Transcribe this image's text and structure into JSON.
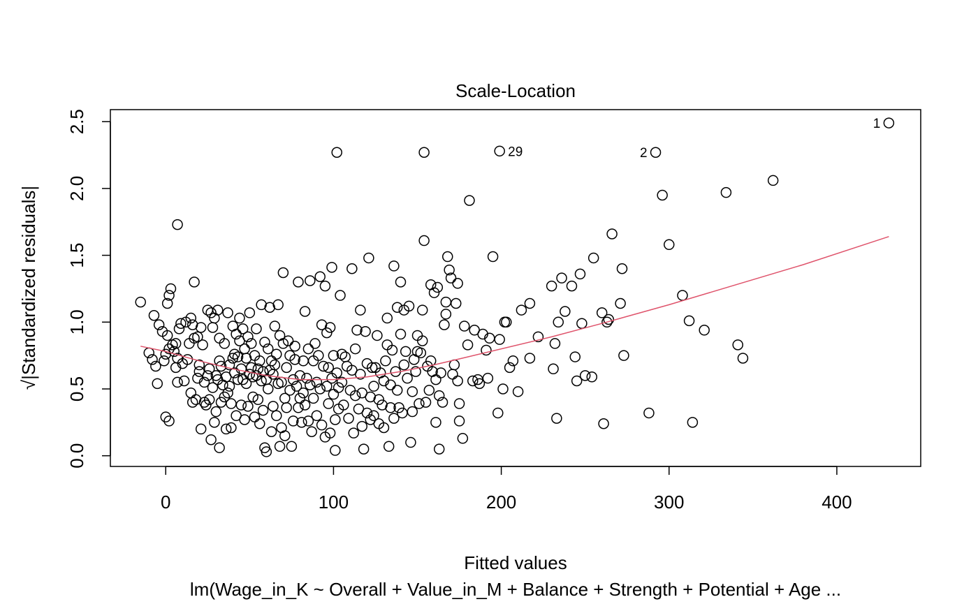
{
  "chart_data": {
    "type": "scatter",
    "title": "Scale-Location",
    "xlabel": "Fitted values",
    "ylabel": "√|Standardized residuals|",
    "subtitle": "lm(Wage_in_K ~ Overall + Value_in_M + Balance + Strength + Potential + Age  ...",
    "xlim": [
      -33,
      450
    ],
    "ylim": [
      -0.08,
      2.59
    ],
    "x_ticks": [
      0,
      100,
      200,
      300,
      400
    ],
    "x_tick_labels": [
      "0",
      "100",
      "200",
      "300",
      "400"
    ],
    "y_ticks": [
      0.0,
      0.5,
      1.0,
      1.5,
      2.0,
      2.5
    ],
    "y_tick_labels": [
      "0.0",
      "0.5",
      "1.0",
      "1.5",
      "2.0",
      "2.5"
    ],
    "grid": false,
    "point_color": "#000000",
    "smooth_color": "#DF536B",
    "smooth_line": {
      "x": [
        -15,
        0,
        20,
        40,
        60,
        80,
        100,
        120,
        140,
        160,
        180,
        200,
        230,
        260,
        300,
        340,
        380,
        431
      ],
      "y": [
        0.82,
        0.78,
        0.71,
        0.65,
        0.6,
        0.57,
        0.57,
        0.59,
        0.63,
        0.68,
        0.74,
        0.8,
        0.89,
        0.99,
        1.13,
        1.28,
        1.43,
        1.64
      ]
    },
    "labeled_points": [
      {
        "label": "1",
        "x": 431,
        "y": 2.49
      },
      {
        "label": "29",
        "x": 199,
        "y": 2.28
      },
      {
        "label": "2",
        "x": 292,
        "y": 2.27
      }
    ],
    "points": [
      [
        -15,
        1.15
      ],
      [
        -10,
        0.77
      ],
      [
        -8,
        0.72
      ],
      [
        -7,
        1.05
      ],
      [
        -6,
        0.67
      ],
      [
        -5,
        0.54
      ],
      [
        -4,
        0.98
      ],
      [
        -2,
        0.93
      ],
      [
        -1,
        0.71
      ],
      [
        0,
        0.29
      ],
      [
        0,
        0.76
      ],
      [
        1,
        0.9
      ],
      [
        1,
        1.14
      ],
      [
        2,
        0.8
      ],
      [
        2,
        1.2
      ],
      [
        2,
        0.26
      ],
      [
        3,
        1.25
      ],
      [
        4,
        0.83
      ],
      [
        5,
        0.78
      ],
      [
        6,
        0.66
      ],
      [
        6,
        0.84
      ],
      [
        7,
        0.73
      ],
      [
        7,
        0.55
      ],
      [
        7,
        1.73
      ],
      [
        8,
        0.95
      ],
      [
        9,
        0.99
      ],
      [
        10,
        0.69
      ],
      [
        11,
        0.56
      ],
      [
        12,
        1.0
      ],
      [
        13,
        0.72
      ],
      [
        14,
        0.84
      ],
      [
        15,
        1.03
      ],
      [
        15,
        0.47
      ],
      [
        16,
        0.4
      ],
      [
        16,
        0.98
      ],
      [
        17,
        0.88
      ],
      [
        17,
        1.3
      ],
      [
        18,
        0.42
      ],
      [
        19,
        0.58
      ],
      [
        19,
        0.89
      ],
      [
        20,
        0.63
      ],
      [
        20,
        0.68
      ],
      [
        21,
        0.2
      ],
      [
        21,
        0.96
      ],
      [
        22,
        0.83
      ],
      [
        23,
        0.4
      ],
      [
        23,
        0.55
      ],
      [
        24,
        0.38
      ],
      [
        25,
        1.09
      ],
      [
        25,
        0.6
      ],
      [
        26,
        0.65
      ],
      [
        26,
        0.42
      ],
      [
        27,
        0.12
      ],
      [
        27,
        1.07
      ],
      [
        28,
        0.96
      ],
      [
        28,
        0.51
      ],
      [
        29,
        0.25
      ],
      [
        29,
        1.03
      ],
      [
        30,
        0.33
      ],
      [
        30,
        0.6
      ],
      [
        31,
        0.57
      ],
      [
        31,
        1.09
      ],
      [
        32,
        0.71
      ],
      [
        32,
        0.06
      ],
      [
        32,
        0.88
      ],
      [
        33,
        0.4
      ],
      [
        33,
        0.67
      ],
      [
        34,
        0.53
      ],
      [
        35,
        0.44
      ],
      [
        35,
        0.84
      ],
      [
        36,
        0.59
      ],
      [
        36,
        0.2
      ],
      [
        37,
        0.47
      ],
      [
        37,
        1.07
      ],
      [
        38,
        0.52
      ],
      [
        38,
        0.68
      ],
      [
        39,
        0.39
      ],
      [
        39,
        0.21
      ],
      [
        40,
        0.73
      ],
      [
        40,
        0.97
      ],
      [
        41,
        0.62
      ],
      [
        41,
        0.76
      ],
      [
        42,
        0.91
      ],
      [
        42,
        0.3
      ],
      [
        43,
        0.74
      ],
      [
        43,
        0.57
      ],
      [
        44,
        1.03
      ],
      [
        44,
        0.86
      ],
      [
        45,
        0.65
      ],
      [
        45,
        0.38
      ],
      [
        46,
        0.57
      ],
      [
        46,
        0.95
      ],
      [
        47,
        0.8
      ],
      [
        47,
        0.27
      ],
      [
        48,
        0.73
      ],
      [
        48,
        0.54
      ],
      [
        49,
        0.89
      ],
      [
        49,
        0.37
      ],
      [
        50,
        0.61
      ],
      [
        50,
        1.07
      ],
      [
        51,
        0.66
      ],
      [
        51,
        0.84
      ],
      [
        52,
        0.44
      ],
      [
        52,
        0.59
      ],
      [
        53,
        0.29
      ],
      [
        53,
        0.75
      ],
      [
        54,
        0.6
      ],
      [
        54,
        0.95
      ],
      [
        55,
        0.42
      ],
      [
        55,
        0.65
      ],
      [
        56,
        0.24
      ],
      [
        56,
        0.71
      ],
      [
        57,
        0.56
      ],
      [
        57,
        1.13
      ],
      [
        58,
        0.34
      ],
      [
        58,
        0.63
      ],
      [
        59,
        0.06
      ],
      [
        59,
        0.85
      ],
      [
        60,
        0.03
      ],
      [
        60,
        0.57
      ],
      [
        61,
        0.5
      ],
      [
        61,
        0.8
      ],
      [
        62,
        1.11
      ],
      [
        62,
        0.64
      ],
      [
        63,
        0.18
      ],
      [
        63,
        0.71
      ],
      [
        64,
        0.37
      ],
      [
        64,
        0.61
      ],
      [
        65,
        0.97
      ],
      [
        65,
        0.68
      ],
      [
        66,
        0.3
      ],
      [
        66,
        0.76
      ],
      [
        67,
        0.54
      ],
      [
        67,
        1.13
      ],
      [
        68,
        0.07
      ],
      [
        68,
        0.9
      ],
      [
        69,
        0.21
      ],
      [
        69,
        0.55
      ],
      [
        70,
        0.84
      ],
      [
        70,
        1.37
      ],
      [
        71,
        0.43
      ],
      [
        71,
        0.15
      ],
      [
        72,
        0.66
      ],
      [
        72,
        0.36
      ],
      [
        73,
        0.86
      ],
      [
        74,
        0.75
      ],
      [
        74,
        0.49
      ],
      [
        75,
        0.07
      ],
      [
        76,
        0.57
      ],
      [
        76,
        0.26
      ],
      [
        77,
        0.82
      ],
      [
        77,
        0.72
      ],
      [
        78,
        0.52
      ],
      [
        79,
        0.36
      ],
      [
        79,
        1.3
      ],
      [
        80,
        0.43
      ],
      [
        80,
        0.6
      ],
      [
        81,
        0.25
      ],
      [
        82,
        0.71
      ],
      [
        82,
        0.47
      ],
      [
        83,
        1.08
      ],
      [
        83,
        0.38
      ],
      [
        84,
        0.58
      ],
      [
        85,
        0.26
      ],
      [
        85,
        0.8
      ],
      [
        86,
        1.31
      ],
      [
        86,
        0.53
      ],
      [
        87,
        0.18
      ],
      [
        88,
        0.71
      ],
      [
        88,
        0.43
      ],
      [
        89,
        0.84
      ],
      [
        90,
        0.55
      ],
      [
        90,
        0.3
      ],
      [
        91,
        0.75
      ],
      [
        92,
        0.5
      ],
      [
        92,
        1.34
      ],
      [
        93,
        0.23
      ],
      [
        93,
        0.98
      ],
      [
        94,
        0.67
      ],
      [
        95,
        0.14
      ],
      [
        95,
        1.27
      ],
      [
        96,
        0.92
      ],
      [
        96,
        0.52
      ],
      [
        97,
        0.39
      ],
      [
        97,
        0.66
      ],
      [
        98,
        0.17
      ],
      [
        98,
        0.96
      ],
      [
        99,
        0.58
      ],
      [
        99,
        1.41
      ],
      [
        100,
        0.46
      ],
      [
        100,
        0.75
      ],
      [
        101,
        0.04
      ],
      [
        101,
        0.27
      ],
      [
        102,
        0.62
      ],
      [
        102,
        2.27
      ],
      [
        103,
        0.35
      ],
      [
        103,
        0.51
      ],
      [
        104,
        1.2
      ],
      [
        105,
        0.55
      ],
      [
        105,
        0.76
      ],
      [
        106,
        0.38
      ],
      [
        107,
        0.74
      ],
      [
        108,
        0.67
      ],
      [
        109,
        0.28
      ],
      [
        110,
        0.49
      ],
      [
        111,
        0.64
      ],
      [
        111,
        1.4
      ],
      [
        112,
        0.17
      ],
      [
        113,
        0.8
      ],
      [
        113,
        0.45
      ],
      [
        114,
        0.94
      ],
      [
        115,
        0.35
      ],
      [
        116,
        0.61
      ],
      [
        116,
        1.09
      ],
      [
        117,
        0.22
      ],
      [
        117,
        0.47
      ],
      [
        118,
        0.05
      ],
      [
        119,
        0.93
      ],
      [
        120,
        0.32
      ],
      [
        120,
        0.69
      ],
      [
        121,
        1.48
      ],
      [
        122,
        0.44
      ],
      [
        122,
        0.27
      ],
      [
        123,
        0.66
      ],
      [
        124,
        0.52
      ],
      [
        124,
        0.3
      ],
      [
        125,
        0.66
      ],
      [
        126,
        0.9
      ],
      [
        127,
        0.24
      ],
      [
        127,
        0.42
      ],
      [
        128,
        0.62
      ],
      [
        129,
        0.38
      ],
      [
        130,
        0.56
      ],
      [
        130,
        0.21
      ],
      [
        131,
        0.71
      ],
      [
        132,
        1.03
      ],
      [
        132,
        0.83
      ],
      [
        133,
        0.07
      ],
      [
        134,
        0.53
      ],
      [
        134,
        0.36
      ],
      [
        135,
        0.79
      ],
      [
        136,
        1.42
      ],
      [
        136,
        0.28
      ],
      [
        137,
        0.63
      ],
      [
        138,
        0.49
      ],
      [
        138,
        1.11
      ],
      [
        139,
        0.36
      ],
      [
        140,
        1.3
      ],
      [
        140,
        0.91
      ],
      [
        141,
        0.32
      ],
      [
        142,
        1.09
      ],
      [
        142,
        0.68
      ],
      [
        143,
        0.78
      ],
      [
        144,
        0.58
      ],
      [
        145,
        1.12
      ],
      [
        146,
        0.1
      ],
      [
        147,
        0.48
      ],
      [
        147,
        0.33
      ],
      [
        148,
        0.72
      ],
      [
        149,
        0.63
      ],
      [
        150,
        0.9
      ],
      [
        150,
        0.78
      ],
      [
        151,
        0.39
      ],
      [
        152,
        0.77
      ],
      [
        153,
        1.09
      ],
      [
        153,
        0.86
      ],
      [
        154,
        2.27
      ],
      [
        154,
        1.61
      ],
      [
        155,
        0.4
      ],
      [
        156,
        0.67
      ],
      [
        157,
        0.49
      ],
      [
        158,
        1.28
      ],
      [
        158,
        0.71
      ],
      [
        159,
        0.63
      ],
      [
        160,
        1.22
      ],
      [
        161,
        0.57
      ],
      [
        161,
        0.25
      ],
      [
        162,
        1.26
      ],
      [
        163,
        0.05
      ],
      [
        163,
        0.45
      ],
      [
        164,
        0.62
      ],
      [
        165,
        0.4
      ],
      [
        166,
        0.98
      ],
      [
        167,
        1.06
      ],
      [
        167,
        1.15
      ],
      [
        168,
        1.49
      ],
      [
        169,
        1.39
      ],
      [
        170,
        1.33
      ],
      [
        171,
        0.61
      ],
      [
        172,
        0.68
      ],
      [
        173,
        1.14
      ],
      [
        174,
        1.29
      ],
      [
        174,
        0.56
      ],
      [
        175,
        0.26
      ],
      [
        175,
        0.39
      ],
      [
        177,
        0.13
      ],
      [
        178,
        0.97
      ],
      [
        180,
        0.83
      ],
      [
        181,
        1.91
      ],
      [
        183,
        0.56
      ],
      [
        184,
        0.94
      ],
      [
        186,
        0.57
      ],
      [
        187,
        0.54
      ],
      [
        189,
        0.91
      ],
      [
        191,
        0.79
      ],
      [
        192,
        0.58
      ],
      [
        193,
        0.88
      ],
      [
        195,
        1.49
      ],
      [
        198,
        0.32
      ],
      [
        199,
        0.87
      ],
      [
        199,
        2.28
      ],
      [
        201,
        0.5
      ],
      [
        202,
        1.0
      ],
      [
        203,
        1.0
      ],
      [
        205,
        0.66
      ],
      [
        207,
        0.71
      ],
      [
        210,
        0.48
      ],
      [
        212,
        1.09
      ],
      [
        217,
        1.14
      ],
      [
        217,
        0.73
      ],
      [
        222,
        0.89
      ],
      [
        230,
        1.27
      ],
      [
        231,
        0.65
      ],
      [
        232,
        0.84
      ],
      [
        233,
        0.28
      ],
      [
        234,
        1.0
      ],
      [
        236,
        1.33
      ],
      [
        238,
        1.08
      ],
      [
        242,
        1.27
      ],
      [
        244,
        0.74
      ],
      [
        245,
        0.56
      ],
      [
        247,
        1.36
      ],
      [
        248,
        0.99
      ],
      [
        250,
        0.6
      ],
      [
        254,
        0.59
      ],
      [
        255,
        1.48
      ],
      [
        260,
        1.07
      ],
      [
        261,
        0.24
      ],
      [
        263,
        1.0
      ],
      [
        264,
        1.02
      ],
      [
        266,
        1.66
      ],
      [
        271,
        1.14
      ],
      [
        272,
        1.4
      ],
      [
        273,
        0.75
      ],
      [
        288,
        0.32
      ],
      [
        292,
        2.27
      ],
      [
        296,
        1.95
      ],
      [
        300,
        1.58
      ],
      [
        308,
        1.2
      ],
      [
        312,
        1.01
      ],
      [
        314,
        0.25
      ],
      [
        321,
        0.94
      ],
      [
        334,
        1.97
      ],
      [
        341,
        0.83
      ],
      [
        344,
        0.73
      ],
      [
        362,
        2.06
      ],
      [
        431,
        2.49
      ]
    ]
  }
}
